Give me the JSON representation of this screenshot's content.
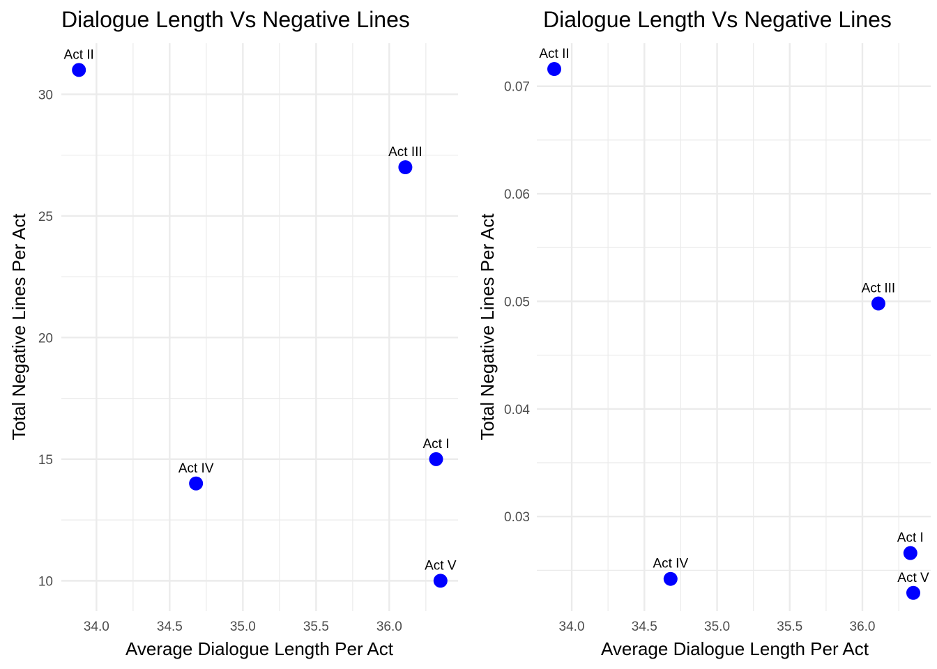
{
  "chart_data": [
    {
      "type": "scatter",
      "title": "Dialogue Length Vs Negative Lines",
      "xlabel": "Average Dialogue Length Per Act",
      "ylabel": "Total Negative Lines Per Act",
      "xlim": [
        33.76,
        36.47
      ],
      "ylim": [
        8.75,
        32.1
      ],
      "xticks": [
        "34.0",
        "34.5",
        "35.0",
        "35.5",
        "36.0"
      ],
      "yticks": [
        "10",
        "15",
        "20",
        "25",
        "30"
      ],
      "xtick_values": [
        34.0,
        34.5,
        35.0,
        35.5,
        36.0
      ],
      "ytick_values": [
        10,
        15,
        20,
        25,
        30
      ],
      "grid": true,
      "point_color": "#0000ff",
      "points": [
        {
          "label": "Act I",
          "x": 36.32,
          "y": 15
        },
        {
          "label": "Act II",
          "x": 33.88,
          "y": 31
        },
        {
          "label": "Act III",
          "x": 36.11,
          "y": 27
        },
        {
          "label": "Act IV",
          "x": 34.68,
          "y": 14
        },
        {
          "label": "Act V",
          "x": 36.35,
          "y": 10
        }
      ]
    },
    {
      "type": "scatter",
      "title": "Dialogue Length Vs Negative Lines",
      "xlabel": "Average Dialogue Length Per Act",
      "ylabel": "Total Negative Lines Per Act",
      "xlim": [
        33.76,
        36.47
      ],
      "ylim": [
        0.0212,
        0.074
      ],
      "xticks": [
        "34.0",
        "34.5",
        "35.0",
        "35.5",
        "36.0"
      ],
      "yticks": [
        "0.03",
        "0.04",
        "0.05",
        "0.06",
        "0.07"
      ],
      "xtick_values": [
        34.0,
        34.5,
        35.0,
        35.5,
        36.0
      ],
      "ytick_values": [
        0.03,
        0.04,
        0.05,
        0.06,
        0.07
      ],
      "grid": true,
      "point_color": "#0000ff",
      "points": [
        {
          "label": "Act I",
          "x": 36.33,
          "y": 0.0266
        },
        {
          "label": "Act II",
          "x": 33.88,
          "y": 0.0716
        },
        {
          "label": "Act III",
          "x": 36.11,
          "y": 0.0498
        },
        {
          "label": "Act IV",
          "x": 34.68,
          "y": 0.0242
        },
        {
          "label": "Act V",
          "x": 36.35,
          "y": 0.0229
        }
      ]
    }
  ]
}
